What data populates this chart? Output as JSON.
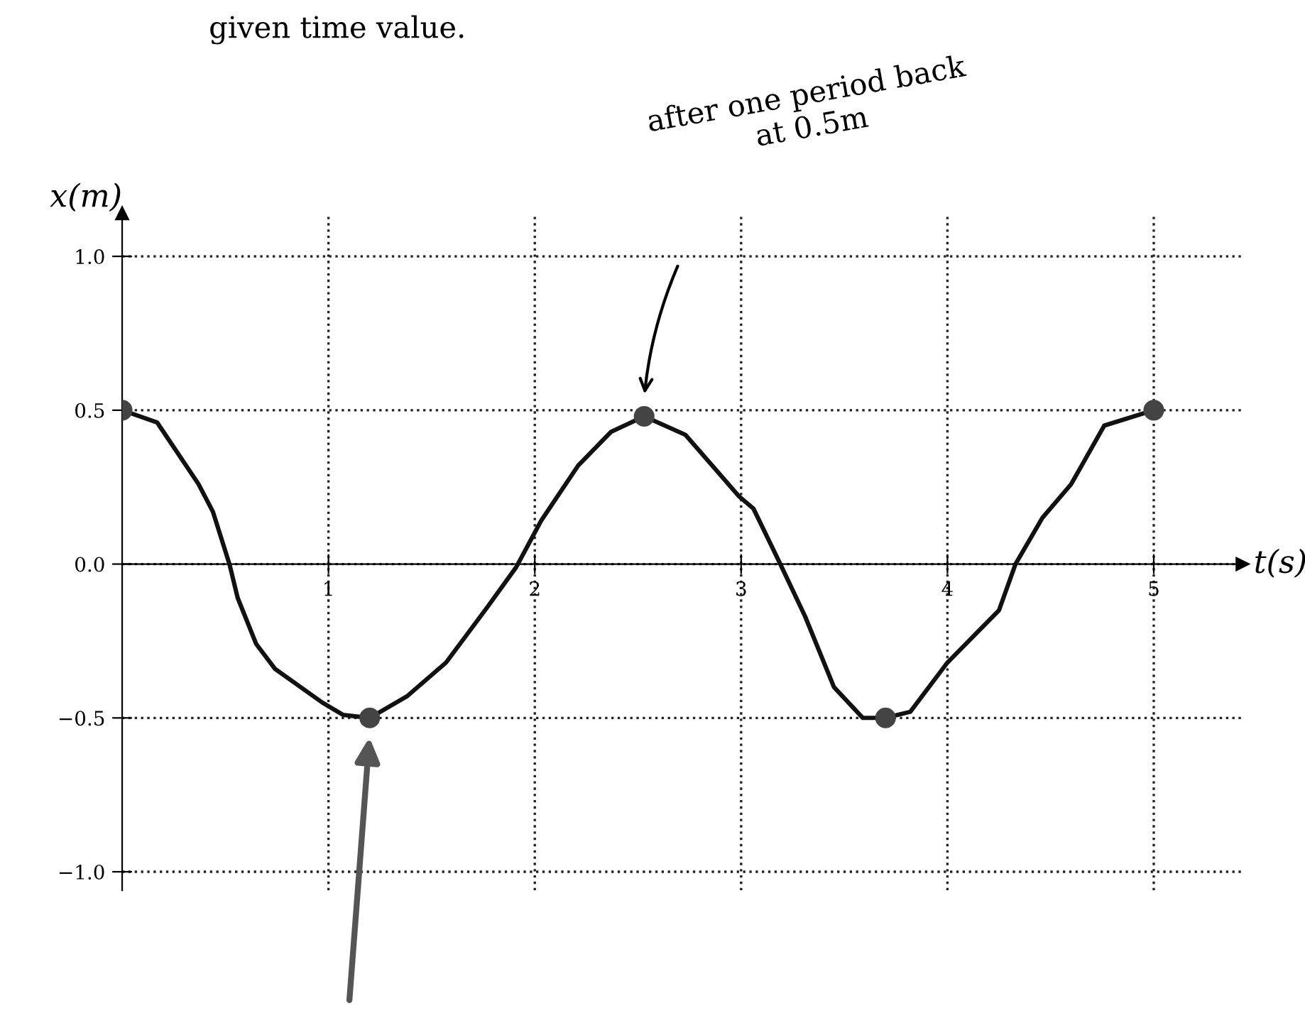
{
  "chart_data": {
    "type": "line",
    "xlabel": "t(s)",
    "ylabel": "x(m)",
    "xlim": [
      0,
      5.43
    ],
    "ylim": [
      -1.06,
      1.14
    ],
    "xticks": [
      1,
      2,
      3,
      4,
      5
    ],
    "yticks": [
      {
        "value": -1.0,
        "label": "−1.0"
      },
      {
        "value": -0.5,
        "label": "−0.5"
      },
      {
        "value": 0.0,
        "label": "0.0"
      },
      {
        "value": 0.5,
        "label": "0.5"
      },
      {
        "value": 1.0,
        "label": "1.0"
      }
    ],
    "grid": true,
    "series": [
      {
        "color": "#111111",
        "line_style": "solid",
        "marker": "none",
        "x": [
          0,
          0.17,
          0.37,
          0.44,
          0.52,
          0.56,
          0.65,
          0.74,
          0.97,
          1.07,
          1.2,
          1.38,
          1.57,
          1.77,
          1.91,
          2.03,
          2.21,
          2.37,
          2.53,
          2.73,
          2.99,
          3.06,
          3.19,
          3.31,
          3.45,
          3.59,
          3.7,
          3.82,
          4.0,
          4.25,
          4.33,
          4.46,
          4.6,
          4.76,
          5.0
        ],
        "values": [
          0.5,
          0.46,
          0.26,
          0.17,
          0,
          -0.11,
          -0.26,
          -0.34,
          -0.45,
          -0.49,
          -0.5,
          -0.43,
          -0.32,
          -0.14,
          -0.01,
          0.14,
          0.32,
          0.43,
          0.48,
          0.42,
          0.22,
          0.18,
          0,
          -0.17,
          -0.4,
          -0.5,
          -0.5,
          -0.48,
          -0.32,
          -0.15,
          0,
          0.15,
          0.26,
          0.45,
          0.5
        ]
      },
      {
        "type": "scatter",
        "color": "#444444",
        "marker": "circle",
        "x": [
          0,
          1.2,
          2.53,
          3.7,
          5.0
        ],
        "values": [
          0.5,
          -0.5,
          0.48,
          -0.5,
          0.5
        ]
      }
    ],
    "annotations": [
      "given time value.",
      "after one period back\nat 0.5m"
    ]
  }
}
